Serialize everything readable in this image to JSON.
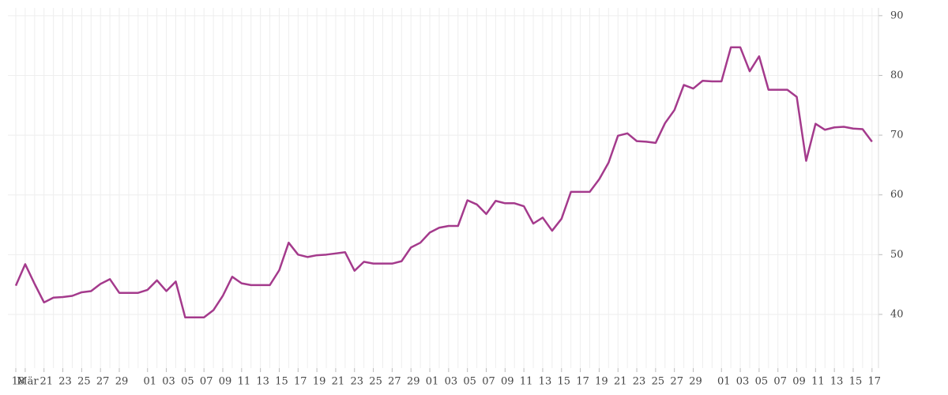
{
  "chart_data": {
    "type": "line",
    "categories": [
      "18",
      "Mär",
      null,
      "21",
      null,
      "23",
      null,
      "25",
      null,
      "27",
      null,
      "29",
      null,
      null,
      "01",
      null,
      "03",
      null,
      "05",
      null,
      "07",
      null,
      "09",
      null,
      "11",
      null,
      "13",
      null,
      "15",
      null,
      "17",
      null,
      "19",
      null,
      "21",
      null,
      "23",
      null,
      "25",
      null,
      "27",
      null,
      "29",
      null,
      "01",
      null,
      "03",
      null,
      "05",
      null,
      "07",
      null,
      "09",
      null,
      "11",
      null,
      "13",
      null,
      "15",
      null,
      "17",
      null,
      "19",
      null,
      "21",
      null,
      "23",
      null,
      "25",
      null,
      "27",
      null,
      "29",
      null,
      null,
      "01",
      null,
      "03",
      null,
      "05",
      null,
      "07",
      null,
      "09",
      null,
      "11",
      null,
      "13",
      null,
      "15",
      null,
      "17"
    ],
    "series": [
      {
        "color": "#a43a8c",
        "values": [
          44.8,
          48.4,
          45.1,
          42.0,
          42.8,
          42.9,
          43.1,
          43.7,
          43.9,
          45.1,
          45.9,
          43.6,
          43.6,
          43.6,
          44.1,
          45.7,
          43.9,
          45.5,
          39.5,
          39.5,
          39.5,
          40.7,
          43.1,
          46.3,
          45.2,
          44.9,
          44.9,
          44.9,
          47.4,
          52.0,
          50.0,
          49.6,
          49.9,
          50.0,
          50.2,
          50.4,
          47.3,
          48.8,
          48.5,
          48.5,
          48.5,
          48.9,
          51.2,
          52.0,
          53.7,
          54.5,
          54.8,
          54.8,
          59.1,
          58.4,
          56.8,
          59.0,
          58.6,
          58.6,
          58.1,
          55.2,
          56.2,
          54.0,
          56.0,
          60.5,
          60.5,
          60.5,
          62.6,
          65.4,
          69.9,
          70.3,
          69.0,
          68.9,
          68.7,
          72.0,
          74.2,
          78.4,
          77.8,
          79.1,
          79.0,
          79.0,
          84.7,
          84.7,
          80.7,
          83.2,
          77.6,
          77.6,
          77.6,
          76.4,
          65.7,
          71.9,
          70.9,
          71.3,
          71.4,
          71.1,
          71.0,
          68.9
        ]
      }
    ],
    "ylim": [
      31,
      91.3
    ],
    "yticks": [
      40,
      50,
      60,
      70,
      80,
      90
    ],
    "grid": true,
    "y_axis_side": "right"
  }
}
